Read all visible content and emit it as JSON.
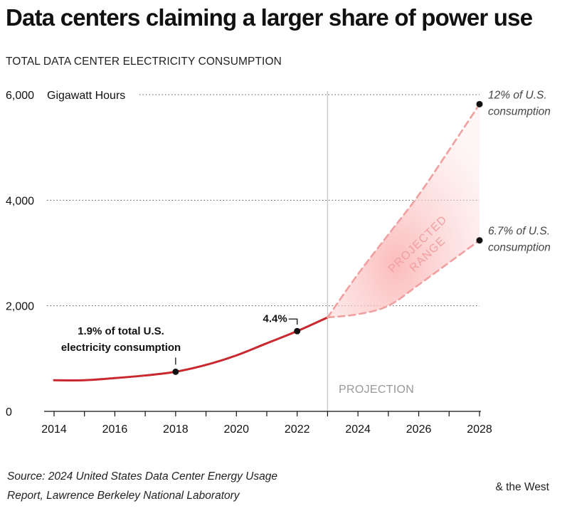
{
  "title": "Data centers claiming a larger share of power use",
  "subtitle": "TOTAL DATA CENTER ELECTRICITY CONSUMPTION",
  "source_lines": [
    "Source: 2024 United States Data Center Energy Usage",
    "Report, Lawrence Berkeley National Laboratory"
  ],
  "brand": "& the West",
  "colors": {
    "actual_line": "#c8282e",
    "projection_line": "#f0a0a0",
    "range_fill": "#fbd3d3",
    "grid": "#555555",
    "divider": "#c8c8c8"
  },
  "chart_data": {
    "type": "line",
    "title": "Data centers claiming a larger share of power use",
    "subtitle": "TOTAL DATA CENTER ELECTRICITY CONSUMPTION",
    "y_unit_label": "Gigawatt Hours",
    "xlim": [
      2014,
      2028
    ],
    "ylim": [
      0,
      6000
    ],
    "x_ticks": [
      2014,
      2016,
      2018,
      2020,
      2022,
      2024,
      2026,
      2028
    ],
    "y_ticks": [
      {
        "value": 0,
        "label": "0"
      },
      {
        "value": 2000,
        "label": "2,000"
      },
      {
        "value": 4000,
        "label": "4,000"
      },
      {
        "value": 6000,
        "label": "6,000"
      }
    ],
    "grid": "horizontal-dotted",
    "projection_start": 2023,
    "projection_label": "PROJECTION",
    "series": [
      {
        "style": "solid",
        "x": [
          2014,
          2015,
          2016,
          2017,
          2018,
          2019,
          2020,
          2021,
          2022,
          2023
        ],
        "y": [
          590,
          590,
          630,
          680,
          750,
          880,
          1060,
          1290,
          1520,
          1780
        ]
      },
      {
        "style": "dashed",
        "x": [
          2023,
          2024,
          2025,
          2026,
          2027,
          2028
        ],
        "y": [
          1780,
          2600,
          3350,
          4100,
          4950,
          5820
        ]
      },
      {
        "style": "dashed",
        "x": [
          2023,
          2024,
          2025,
          2026,
          2027,
          2028
        ],
        "y": [
          1780,
          1840,
          2000,
          2400,
          2820,
          3240
        ]
      }
    ],
    "projected_range_label": [
      "PROJECTED",
      "RANGE"
    ],
    "annotations": [
      {
        "x": 2018,
        "y": 750,
        "lines": [
          "1.9% of total U.S.",
          "electricity consumption"
        ]
      },
      {
        "x": 2022,
        "y": 1520,
        "lines": [
          "4.4%"
        ]
      },
      {
        "x": 2028,
        "y": 5820,
        "lines": [
          "12% of U.S.",
          "consumption"
        ]
      },
      {
        "x": 2028,
        "y": 3240,
        "lines": [
          "6.7% of U.S.",
          "consumption"
        ]
      }
    ]
  }
}
